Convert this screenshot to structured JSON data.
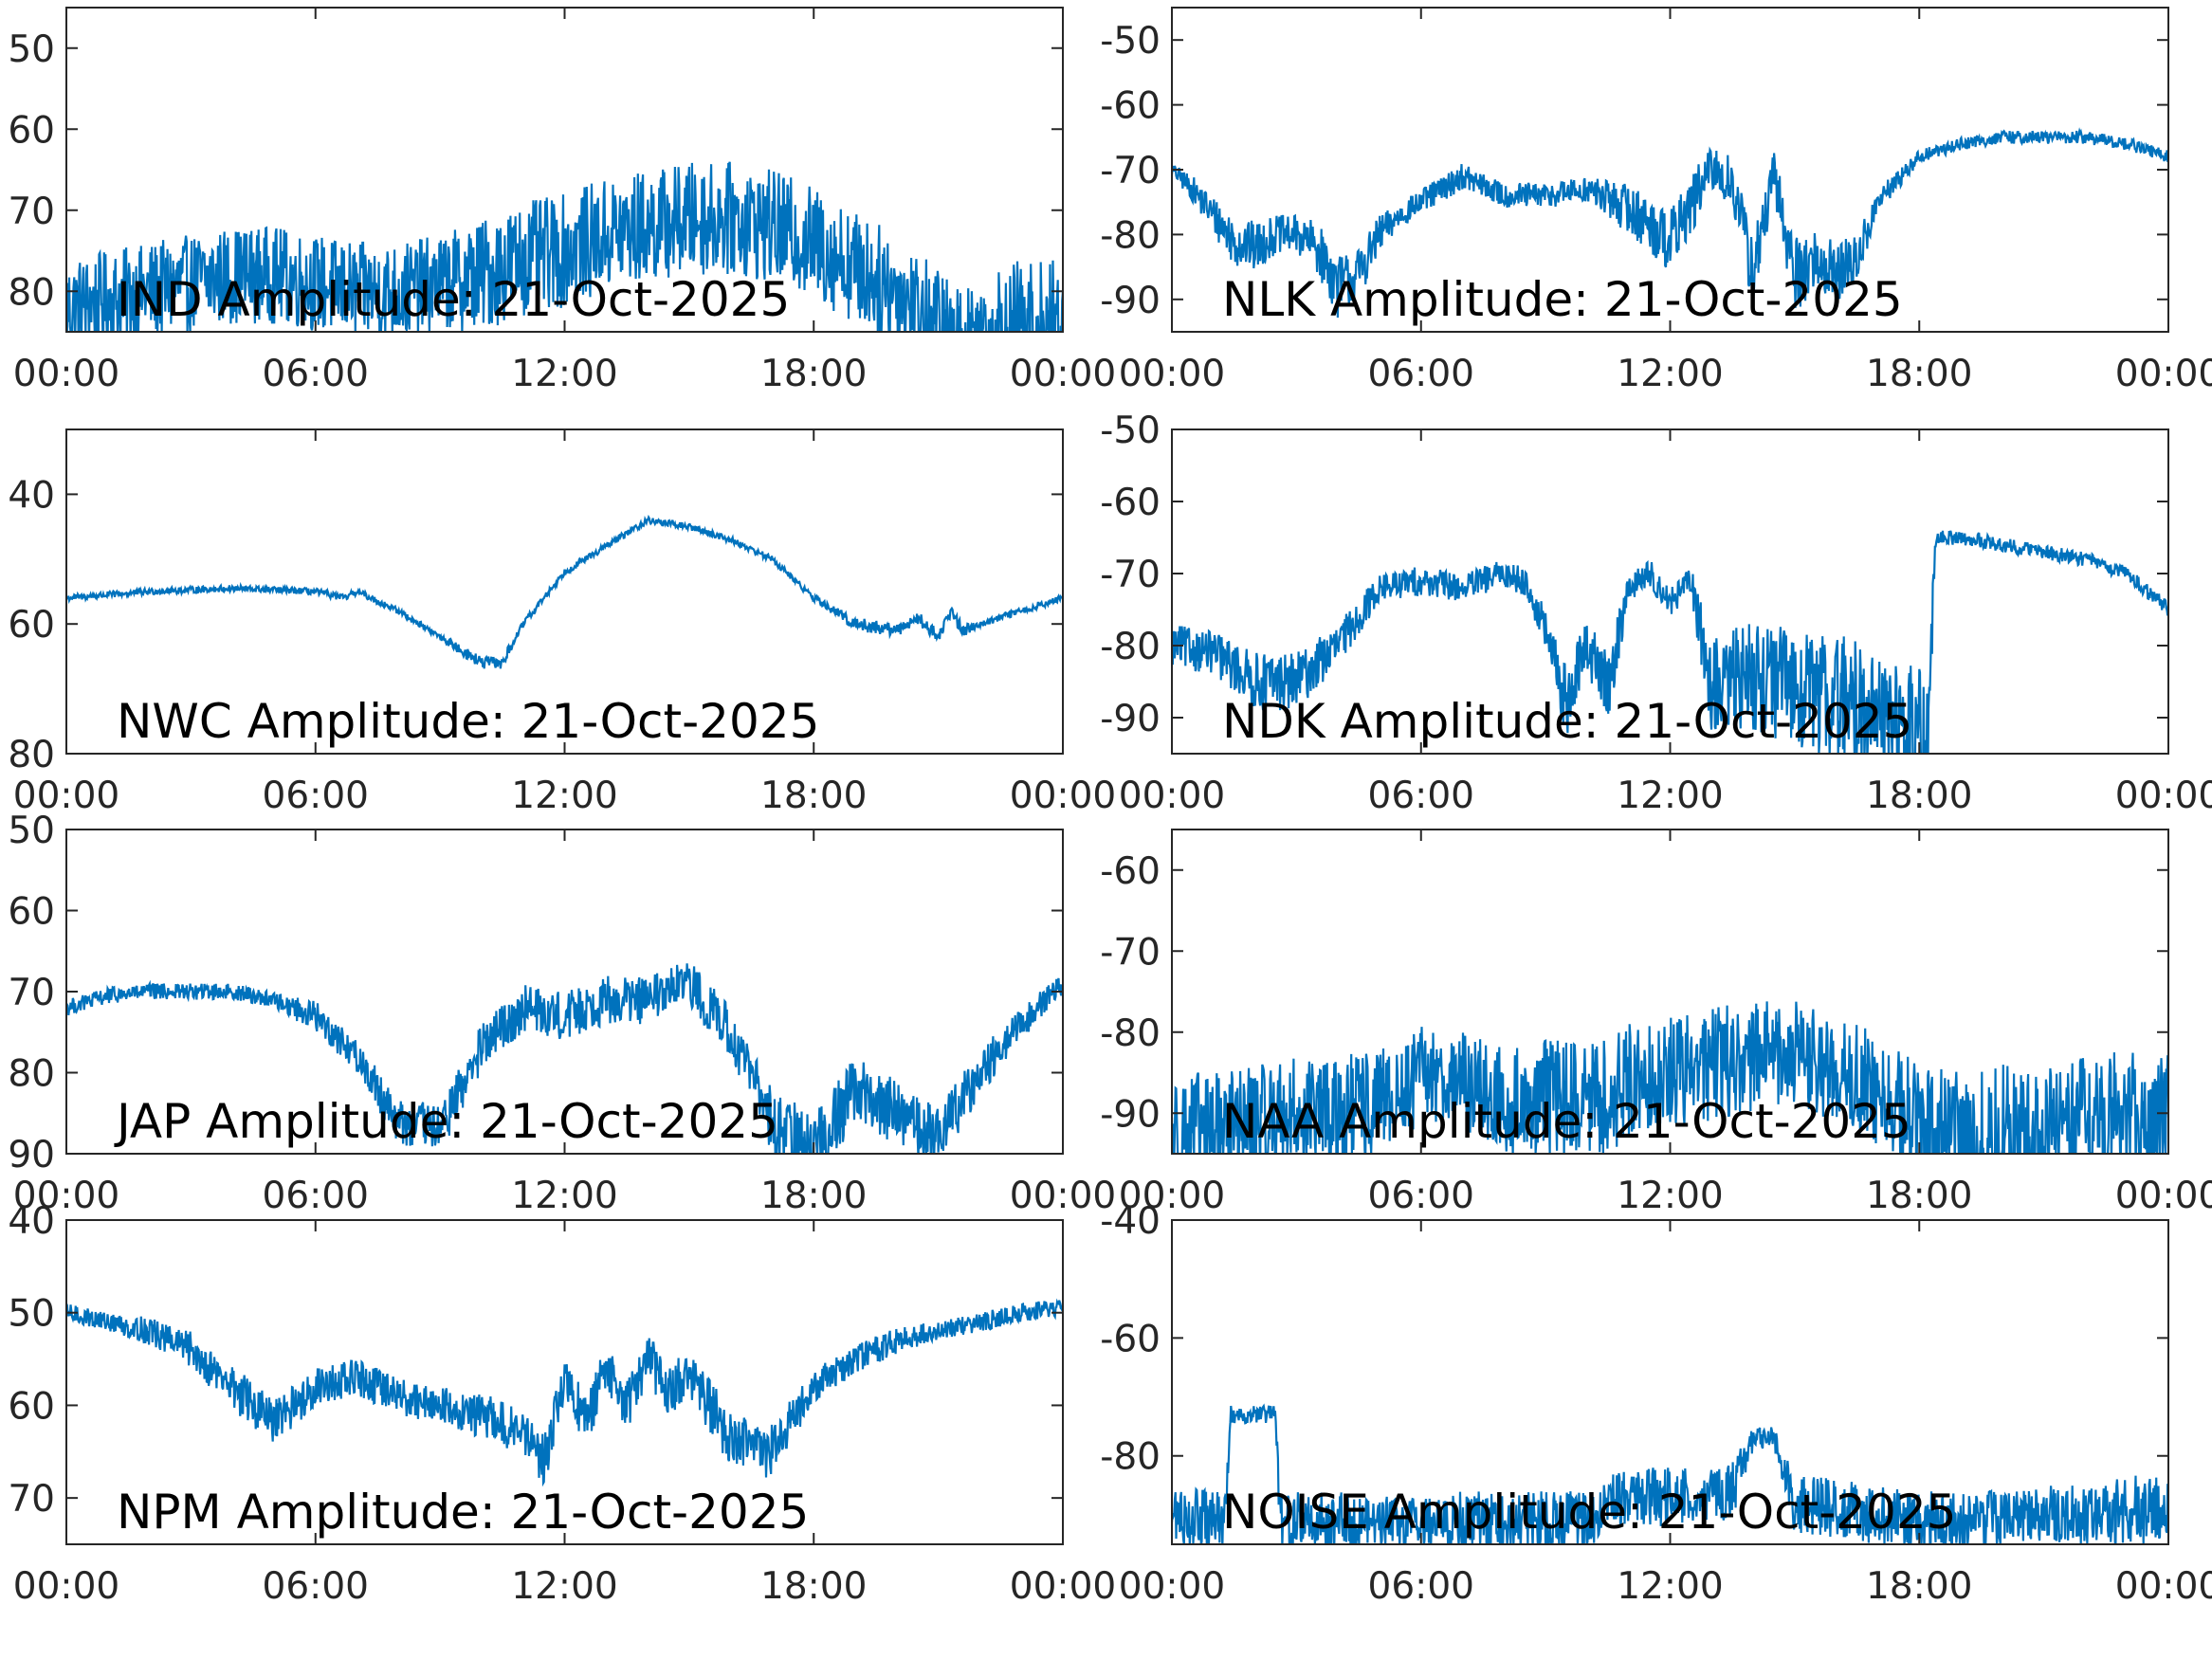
{
  "colors": {
    "line": "#0072BD",
    "axis": "#262626",
    "background": "#ffffff"
  },
  "chart_data": [
    {
      "type": "line",
      "title": "IND Amplitude: 21-Oct-2025",
      "xlabel": "",
      "ylabel": "",
      "xlim": [
        0,
        24
      ],
      "xticks": [
        "00:00",
        "06:00",
        "12:00",
        "18:00",
        "00:00"
      ],
      "ylim": [
        -85,
        -45
      ],
      "yticks": [
        -50,
        -60,
        -70,
        -80
      ],
      "ytick_labels": [
        "50",
        "60",
        "70",
        "80"
      ],
      "series": [
        {
          "x": [
            0,
            1,
            2,
            3,
            4,
            5,
            6,
            7,
            8,
            9,
            10,
            11,
            12,
            13,
            14,
            15,
            16,
            17,
            18,
            19,
            20,
            21,
            21.5,
            22,
            23,
            24
          ],
          "y": [
            -82,
            -81,
            -80,
            -79,
            -78,
            -78,
            -79,
            -80,
            -80,
            -79,
            -78,
            -76,
            -75,
            -73,
            -72,
            -71,
            -71,
            -72,
            -74,
            -77,
            -80,
            -84,
            -86,
            -85,
            -84,
            -84
          ],
          "spread": [
            6,
            6,
            6,
            6,
            6,
            6,
            6,
            6,
            6,
            6,
            7,
            7,
            7,
            7,
            7,
            7,
            7,
            7,
            7,
            7,
            7,
            7,
            7,
            7,
            8,
            8
          ]
        }
      ]
    },
    {
      "type": "line",
      "title": "NLK Amplitude: 21-Oct-2025",
      "xlabel": "",
      "ylabel": "",
      "xlim": [
        0,
        24
      ],
      "xticks": [
        "00:00",
        "06:00",
        "12:00",
        "18:00",
        "00:00"
      ],
      "ylim": [
        -95,
        -45
      ],
      "yticks": [
        -50,
        -60,
        -70,
        -80,
        -90
      ],
      "ytick_labels": [
        "-50",
        "-60",
        "-70",
        "-80",
        "-90"
      ],
      "series": [
        {
          "x": [
            0,
            0.5,
            1,
            1.5,
            2,
            2.5,
            3,
            3.5,
            4,
            4.5,
            5,
            5.5,
            6,
            7,
            8,
            9,
            10,
            11,
            12,
            13,
            13.5,
            14,
            14.5,
            15,
            15.5,
            16,
            16.5,
            17,
            18,
            19,
            20,
            21,
            22,
            23,
            24
          ],
          "y": [
            -70,
            -73,
            -77,
            -81,
            -82,
            -80,
            -80,
            -82,
            -88,
            -86,
            -80,
            -77,
            -75,
            -71,
            -74,
            -74,
            -73,
            -76,
            -81,
            -70,
            -72,
            -86,
            -71,
            -86,
            -84,
            -86,
            -84,
            -75,
            -68,
            -66,
            -65,
            -65,
            -65,
            -66,
            -68
          ],
          "spread": [
            1,
            2,
            3,
            4,
            4,
            3,
            3,
            4,
            5,
            4,
            3,
            2,
            2,
            2,
            2,
            2,
            2,
            4,
            5,
            4,
            4,
            6,
            4,
            6,
            5,
            5,
            4,
            2,
            1,
            1,
            1,
            1,
            1,
            1,
            1
          ]
        }
      ]
    },
    {
      "type": "line",
      "title": "NWC Amplitude: 21-Oct-2025",
      "xlabel": "",
      "ylabel": "",
      "xlim": [
        0,
        24
      ],
      "xticks": [
        "00:00",
        "06:00",
        "12:00",
        "18:00",
        "00:00"
      ],
      "ylim": [
        -80,
        -30
      ],
      "yticks": [
        -40,
        -60,
        -80
      ],
      "ytick_labels": [
        "40",
        "60",
        "80"
      ],
      "series": [
        {
          "x": [
            0,
            2,
            4,
            6,
            6.7,
            7,
            8,
            9,
            10,
            10.5,
            11,
            12,
            13,
            14,
            15,
            16,
            17,
            18,
            19,
            20,
            20.5,
            21,
            21.3,
            21.6,
            22,
            23,
            24
          ],
          "y": [
            -56,
            -55,
            -54.5,
            -55,
            -56,
            -55,
            -58,
            -62,
            -66,
            -66,
            -60,
            -52,
            -48,
            -44,
            -45,
            -47,
            -50,
            -56,
            -60,
            -61,
            -59,
            -62,
            -58,
            -61,
            -60,
            -58,
            -56
          ],
          "spread": [
            0.5,
            0.5,
            0.5,
            0.5,
            0.5,
            0.5,
            0.5,
            0.5,
            1,
            1,
            0.5,
            0.5,
            0.5,
            0.5,
            0.5,
            0.5,
            0.5,
            0.5,
            1,
            1,
            1,
            1,
            1,
            1,
            0.5,
            0.5,
            0.5
          ]
        }
      ]
    },
    {
      "type": "line",
      "title": "NDK Amplitude: 21-Oct-2025",
      "xlabel": "",
      "ylabel": "",
      "xlim": [
        0,
        24
      ],
      "xticks": [
        "00:00",
        "06:00",
        "12:00",
        "18:00",
        "00:00"
      ],
      "ylim": [
        -95,
        -50
      ],
      "yticks": [
        -50,
        -60,
        -70,
        -80,
        -90
      ],
      "ytick_labels": [
        "-50",
        "-60",
        "-70",
        "-80",
        "-90"
      ],
      "series": [
        {
          "x": [
            0,
            1,
            2,
            3,
            4,
            5,
            6,
            7,
            8,
            8.5,
            9,
            9.5,
            10,
            10.5,
            11,
            11.5,
            12,
            12.5,
            13,
            14,
            15,
            16,
            17,
            18,
            18.2,
            18.4,
            19,
            20,
            21,
            22,
            23,
            24
          ],
          "y": [
            -80,
            -81,
            -85,
            -85,
            -80,
            -72,
            -71,
            -72,
            -70,
            -71,
            -78,
            -88,
            -80,
            -86,
            -72,
            -70,
            -74,
            -71,
            -86,
            -84,
            -86,
            -87,
            -89,
            -92,
            -92,
            -65,
            -65,
            -66,
            -67,
            -68,
            -70,
            -75
          ],
          "spread": [
            3,
            3,
            4,
            4,
            3,
            2,
            2,
            2,
            2,
            2,
            3,
            5,
            4,
            5,
            2,
            2,
            2,
            2,
            7,
            8,
            8,
            9,
            9,
            9,
            9,
            1,
            1,
            1,
            1,
            1,
            1,
            1
          ]
        }
      ]
    },
    {
      "type": "line",
      "title": "JAP Amplitude: 21-Oct-2025",
      "xlabel": "",
      "ylabel": "",
      "xlim": [
        0,
        24
      ],
      "xticks": [
        "00:00",
        "06:00",
        "12:00",
        "18:00",
        "00:00"
      ],
      "ylim": [
        -90,
        -50
      ],
      "yticks": [
        -50,
        -60,
        -70,
        -80,
        -90
      ],
      "ytick_labels": [
        "50",
        "60",
        "70",
        "80",
        "90"
      ],
      "series": [
        {
          "x": [
            0,
            1,
            2,
            3,
            4,
            5,
            6,
            7,
            8,
            9,
            10,
            11,
            12,
            13,
            14,
            15,
            16,
            17,
            18,
            19,
            20,
            21,
            22,
            23,
            24
          ],
          "y": [
            -72,
            -70.5,
            -70,
            -70,
            -70,
            -71,
            -73,
            -78,
            -86,
            -87,
            -77,
            -72,
            -73,
            -71,
            -71,
            -69,
            -75,
            -86,
            -90,
            -82,
            -85,
            -88,
            -80,
            -74,
            -69
          ],
          "spread": [
            1,
            1,
            1,
            1,
            1,
            1,
            2,
            2,
            3,
            3,
            3,
            3,
            3,
            3,
            3,
            3,
            3,
            4,
            5,
            4,
            4,
            4,
            3,
            2,
            1.5
          ]
        }
      ]
    },
    {
      "type": "line",
      "title": "NAA Amplitude: 21-Oct-2025",
      "xlabel": "",
      "ylabel": "",
      "xlim": [
        0,
        24
      ],
      "xticks": [
        "00:00",
        "06:00",
        "12:00",
        "18:00",
        "00:00"
      ],
      "ylim": [
        -95,
        -55
      ],
      "yticks": [
        -60,
        -70,
        -80,
        -90
      ],
      "ytick_labels": [
        "-60",
        "-70",
        "-80",
        "-90"
      ],
      "series": [
        {
          "x": [
            0,
            1,
            2,
            3,
            4,
            5,
            5.5,
            6,
            7,
            8,
            9,
            10,
            10.5,
            11,
            12,
            13,
            14,
            15,
            16,
            17,
            18,
            19,
            20,
            21,
            22,
            23,
            24
          ],
          "y": [
            -92,
            -92,
            -91,
            -90,
            -90,
            -89,
            -88,
            -85,
            -86,
            -89,
            -88,
            -88,
            -88,
            -86,
            -85,
            -84,
            -83,
            -83,
            -85,
            -87,
            -92,
            -93,
            -92,
            -92,
            -91,
            -90,
            -90
          ],
          "spread": [
            7,
            7,
            7,
            7,
            7,
            7,
            6,
            6,
            6,
            7,
            7,
            7,
            7,
            7,
            7,
            7,
            7,
            7,
            7,
            7,
            8,
            8,
            8,
            8,
            8,
            8,
            8
          ]
        }
      ]
    },
    {
      "type": "line",
      "title": "NPM Amplitude: 21-Oct-2025",
      "xlabel": "",
      "ylabel": "",
      "xlim": [
        0,
        24
      ],
      "xticks": [
        "00:00",
        "06:00",
        "12:00",
        "18:00",
        "00:00"
      ],
      "ylim": [
        -75,
        -40
      ],
      "yticks": [
        -40,
        -50,
        -60,
        -70
      ],
      "ytick_labels": [
        "40",
        "50",
        "60",
        "70"
      ],
      "series": [
        {
          "x": [
            0,
            1,
            2,
            3,
            4,
            5,
            6,
            7,
            8,
            9,
            10,
            11,
            11.5,
            12,
            12.5,
            13,
            13.5,
            14,
            14.5,
            15,
            15.5,
            16,
            17,
            18,
            19,
            20,
            21,
            22,
            23,
            24
          ],
          "y": [
            -50,
            -51,
            -52,
            -54,
            -58,
            -62,
            -58,
            -57,
            -59,
            -60,
            -61,
            -63,
            -66,
            -57,
            -62,
            -56,
            -60,
            -55,
            -58,
            -57,
            -60,
            -64,
            -65,
            -58,
            -55,
            -53,
            -52,
            -51,
            -50,
            -49.5
          ],
          "spread": [
            1,
            1,
            1.5,
            2,
            2.5,
            2.5,
            2,
            2,
            2,
            2,
            2.5,
            2.5,
            3,
            2.5,
            3,
            2.5,
            3,
            2.5,
            3,
            2.5,
            3,
            3,
            3,
            2,
            1.5,
            1.5,
            1,
            1,
            1,
            1
          ]
        }
      ]
    },
    {
      "type": "line",
      "title": "NOISE Amplitude: 21-Oct-2025",
      "xlabel": "",
      "ylabel": "",
      "xlim": [
        0,
        24
      ],
      "xticks": [
        "00:00",
        "06:00",
        "12:00",
        "18:00",
        "00:00"
      ],
      "ylim": [
        -95,
        -40
      ],
      "yticks": [
        -40,
        -60,
        -80
      ],
      "ytick_labels": [
        "-40",
        "-60",
        "-80"
      ],
      "series": [
        {
          "x": [
            0,
            1,
            1.3,
            1.4,
            2.5,
            2.6,
            3,
            4,
            5,
            6,
            7,
            8,
            9,
            10,
            10.5,
            11,
            12,
            13,
            13.5,
            14,
            14.5,
            15,
            16,
            17,
            18,
            19,
            20,
            21,
            22,
            23,
            24
          ],
          "y": [
            -90,
            -91,
            -91,
            -73,
            -73,
            -91,
            -91,
            -91,
            -91,
            -91,
            -91,
            -91,
            -91,
            -91,
            -88,
            -87,
            -87,
            -86,
            -86,
            -77,
            -77,
            -88,
            -89,
            -90,
            -91,
            -91,
            -91,
            -90,
            -90,
            -89,
            -89
          ],
          "spread": [
            5,
            5,
            5,
            1.5,
            1.5,
            5,
            5,
            5,
            5,
            5,
            5,
            5,
            5,
            5,
            5,
            5,
            5,
            5,
            5,
            2,
            2,
            5,
            5,
            5,
            5,
            5,
            5,
            5,
            5,
            6,
            6
          ]
        }
      ]
    }
  ]
}
